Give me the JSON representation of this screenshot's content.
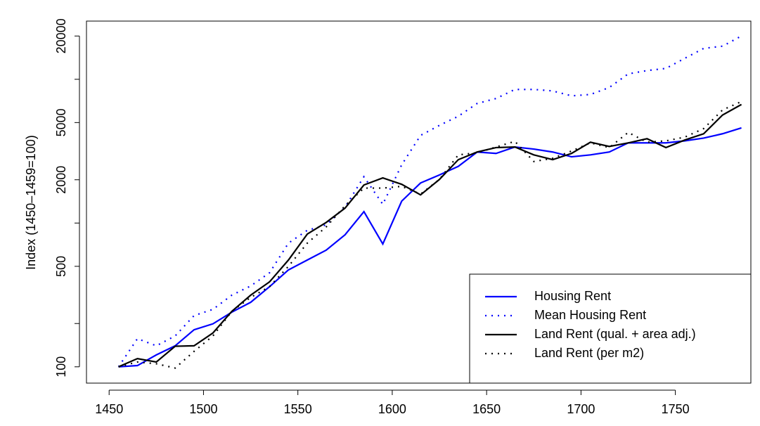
{
  "chart_data": {
    "type": "line",
    "ylabel": "Index (1450–1459=100)",
    "x": [
      1455,
      1465,
      1475,
      1485,
      1495,
      1505,
      1515,
      1525,
      1535,
      1545,
      1555,
      1565,
      1575,
      1585,
      1595,
      1605,
      1615,
      1625,
      1635,
      1645,
      1655,
      1665,
      1675,
      1685,
      1695,
      1705,
      1715,
      1725,
      1735,
      1745,
      1755,
      1765,
      1775,
      1785
    ],
    "xlim": [
      1438,
      1790
    ],
    "xticks": [
      1450,
      1500,
      1550,
      1600,
      1650,
      1700,
      1750
    ],
    "ylim": [
      77,
      25400
    ],
    "log_y": true,
    "yticks": [
      100,
      500,
      2000,
      5000,
      20000
    ],
    "yminor_ticks": [
      200,
      1000,
      10000
    ],
    "legend": "bottomright",
    "series": [
      {
        "name": "Housing Rent",
        "color": "#0000ff",
        "dash": "solid",
        "values": [
          100,
          102,
          121,
          140,
          181,
          199,
          240,
          281,
          361,
          472,
          553,
          648,
          829,
          1200,
          715,
          1420,
          1900,
          2160,
          2480,
          3120,
          3050,
          3380,
          3270,
          3120,
          2890,
          2980,
          3120,
          3610,
          3610,
          3610,
          3730,
          3900,
          4180,
          4590
        ]
      },
      {
        "name": "Mean Housing Rent",
        "color": "#0000ff",
        "dash": "dotted",
        "values": [
          100,
          157,
          140,
          164,
          227,
          251,
          315,
          365,
          451,
          725,
          890,
          970,
          1290,
          2100,
          1350,
          2540,
          4070,
          4780,
          5530,
          6790,
          7350,
          8500,
          8500,
          8300,
          7670,
          7840,
          8770,
          10900,
          11500,
          11900,
          14000,
          16400,
          17000,
          20000
        ]
      },
      {
        "name": "Land Rent (qual. + area adj.)",
        "color": "#000000",
        "dash": "solid",
        "values": [
          100,
          114,
          108,
          139,
          140,
          172,
          243,
          315,
          390,
          553,
          838,
          1010,
          1270,
          1840,
          2060,
          1860,
          1570,
          2010,
          2760,
          3120,
          3350,
          3380,
          2980,
          2760,
          3050,
          3650,
          3410,
          3610,
          3860,
          3350,
          3780,
          4180,
          5640,
          6680
        ]
      },
      {
        "name": "Land Rent (per m2)",
        "color": "#000000",
        "dash": "dotted",
        "values": [
          100,
          108,
          105,
          98,
          128,
          164,
          243,
          304,
          361,
          500,
          725,
          940,
          1320,
          1750,
          1750,
          1800,
          1590,
          2010,
          2980,
          3080,
          3380,
          3700,
          2680,
          2820,
          3170,
          3610,
          3350,
          4270,
          3650,
          3730,
          3960,
          4540,
          6120,
          7000
        ]
      }
    ]
  }
}
